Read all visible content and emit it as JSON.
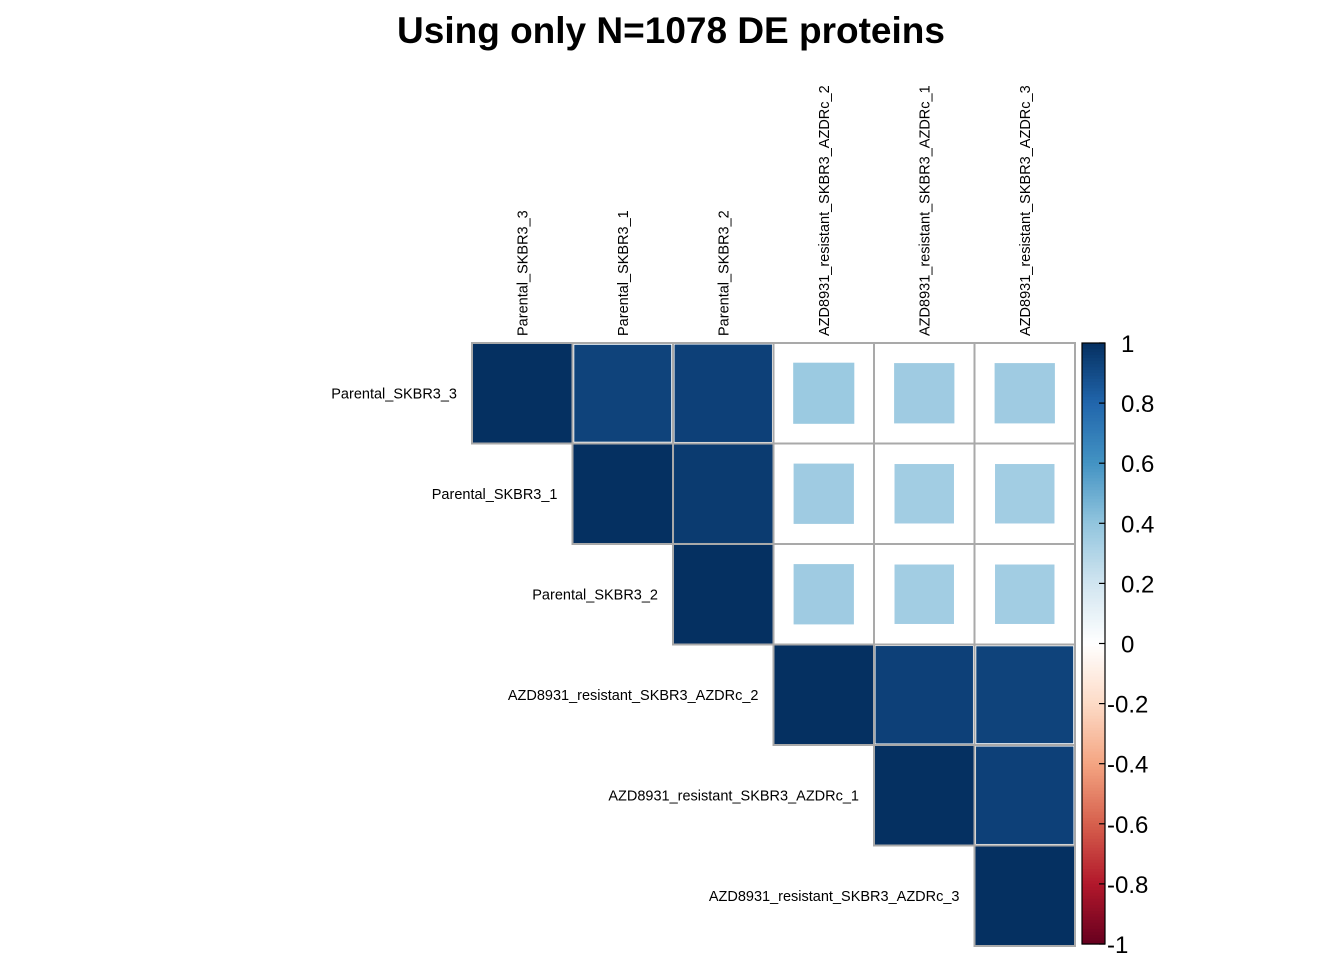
{
  "chart_data": {
    "type": "heatmap",
    "title": "Using only N=1078 DE proteins",
    "variables": [
      "Parental_SKBR3_3",
      "Parental_SKBR3_1",
      "Parental_SKBR3_2",
      "AZD8931_resistant_SKBR3_AZDRc_2",
      "AZD8931_resistant_SKBR3_AZDRc_1",
      "AZD8931_resistant_SKBR3_AZDRc_3"
    ],
    "layout": "upper-triangle",
    "matrix": [
      [
        1.0,
        0.93,
        0.94,
        0.37,
        0.36,
        0.36
      ],
      [
        null,
        1.0,
        0.96,
        0.36,
        0.35,
        0.35
      ],
      [
        null,
        null,
        1.0,
        0.36,
        0.35,
        0.35
      ],
      [
        null,
        null,
        null,
        1.0,
        0.94,
        0.93
      ],
      [
        null,
        null,
        null,
        null,
        1.0,
        0.94
      ],
      [
        null,
        null,
        null,
        null,
        null,
        1.0
      ]
    ],
    "color_scale": {
      "ticks": [
        "1",
        "0.8",
        "0.6",
        "0.4",
        "0.2",
        "0",
        "-0.2",
        "-0.4",
        "-0.6",
        "-0.8",
        "-1"
      ],
      "range": [
        -1,
        1
      ],
      "colors": [
        "#67001F",
        "#B2182B",
        "#D6604D",
        "#F4A582",
        "#FDDBC7",
        "#FFFFFF",
        "#D1E5F0",
        "#92C5DE",
        "#4393C3",
        "#2166AC",
        "#053061"
      ]
    },
    "legend_position": "right"
  }
}
